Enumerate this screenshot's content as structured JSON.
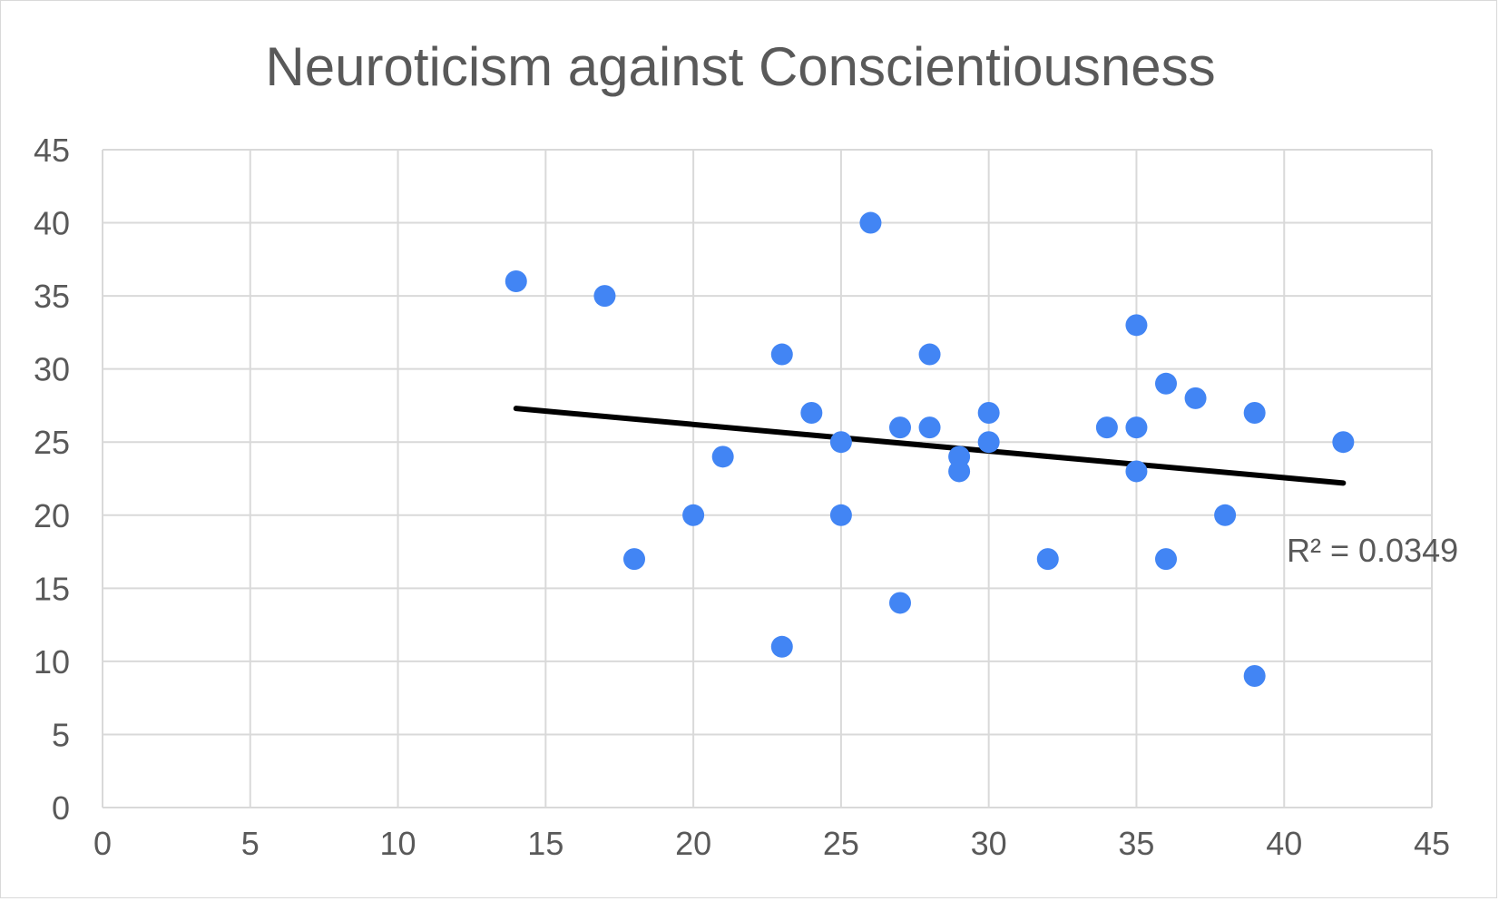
{
  "chart_data": {
    "type": "scatter",
    "title": "Neuroticism against Conscientiousness",
    "xlabel": "",
    "ylabel": "",
    "xlim": [
      0,
      45
    ],
    "ylim": [
      0,
      45
    ],
    "x_ticks": [
      "0",
      "5",
      "10",
      "15",
      "20",
      "25",
      "30",
      "35",
      "40",
      "45"
    ],
    "y_ticks": [
      "0",
      "5",
      "10",
      "15",
      "20",
      "25",
      "30",
      "35",
      "40",
      "45"
    ],
    "grid": true,
    "points": [
      {
        "x": 14,
        "y": 36
      },
      {
        "x": 17,
        "y": 35
      },
      {
        "x": 18,
        "y": 17
      },
      {
        "x": 20,
        "y": 20
      },
      {
        "x": 21,
        "y": 24
      },
      {
        "x": 23,
        "y": 31
      },
      {
        "x": 23,
        "y": 11
      },
      {
        "x": 24,
        "y": 27
      },
      {
        "x": 25,
        "y": 25
      },
      {
        "x": 25,
        "y": 20
      },
      {
        "x": 26,
        "y": 40
      },
      {
        "x": 27,
        "y": 26
      },
      {
        "x": 27,
        "y": 14
      },
      {
        "x": 28,
        "y": 31
      },
      {
        "x": 28,
        "y": 26
      },
      {
        "x": 29,
        "y": 24
      },
      {
        "x": 29,
        "y": 23
      },
      {
        "x": 30,
        "y": 27
      },
      {
        "x": 30,
        "y": 25
      },
      {
        "x": 32,
        "y": 17
      },
      {
        "x": 34,
        "y": 26
      },
      {
        "x": 35,
        "y": 33
      },
      {
        "x": 35,
        "y": 26
      },
      {
        "x": 35,
        "y": 23
      },
      {
        "x": 36,
        "y": 29
      },
      {
        "x": 36,
        "y": 17
      },
      {
        "x": 37,
        "y": 28
      },
      {
        "x": 38,
        "y": 20
      },
      {
        "x": 39,
        "y": 27
      },
      {
        "x": 39,
        "y": 9
      },
      {
        "x": 42,
        "y": 25
      }
    ],
    "trendline": {
      "x1": 14,
      "y1": 27.3,
      "x2": 42,
      "y2": 22.2
    },
    "annotation": "R² = 0.0349",
    "colors": {
      "points": "#4285f4",
      "trendline": "#000000",
      "grid": "#d9d9d9",
      "text": "#595959"
    }
  }
}
